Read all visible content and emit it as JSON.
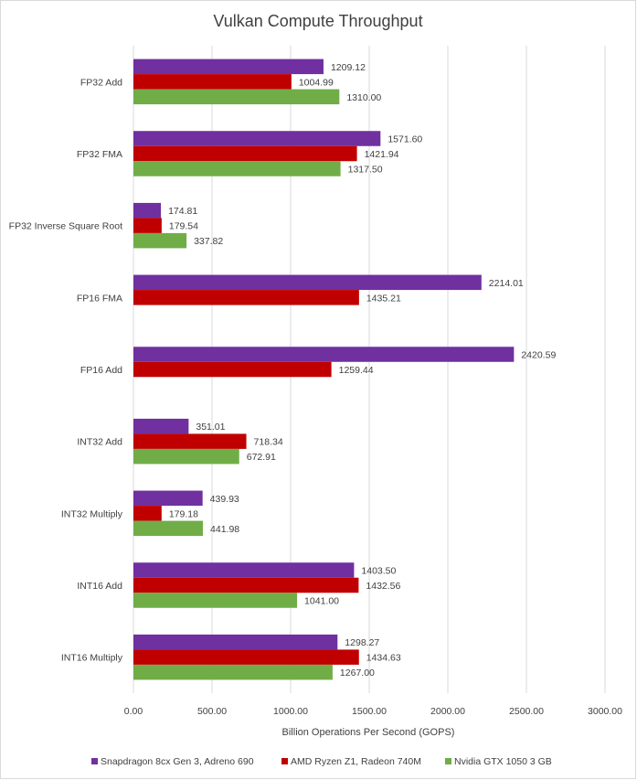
{
  "chart_data": {
    "type": "bar",
    "orientation": "horizontal",
    "title": "Vulkan Compute Throughput",
    "xlabel": "Billion Operations Per Second (GOPS)",
    "ylabel": "",
    "xlim": [
      0,
      3000
    ],
    "x_ticks": [
      "0.00",
      "500.00",
      "1000.00",
      "1500.00",
      "2000.00",
      "2500.00",
      "3000.00"
    ],
    "grid": true,
    "legend_position": "bottom",
    "categories": [
      "FP32 Add",
      "FP32 FMA",
      "FP32 Inverse Square Root",
      "FP16 FMA",
      "FP16 Add",
      "INT32 Add",
      "INT32 Multiply",
      "INT16 Add",
      "INT16 Multiply"
    ],
    "series": [
      {
        "name": "Snapdragon 8cx Gen 3, Adreno 690",
        "color": "#7030a0",
        "values": [
          1209.12,
          1571.6,
          174.81,
          2214.01,
          2420.59,
          351.01,
          439.93,
          1403.5,
          1298.27
        ],
        "labels": [
          "1209.12",
          "1571.60",
          "174.81",
          "2214.01",
          "2420.59",
          "351.01",
          "439.93",
          "1403.50",
          "1298.27"
        ]
      },
      {
        "name": "AMD Ryzen Z1, Radeon 740M",
        "color": "#c00000",
        "values": [
          1004.99,
          1421.94,
          179.54,
          1435.21,
          1259.44,
          718.34,
          179.18,
          1432.56,
          1434.63
        ],
        "labels": [
          "1004.99",
          "1421.94",
          "179.54",
          "1435.21",
          "1259.44",
          "718.34",
          "179.18",
          "1432.56",
          "1434.63"
        ]
      },
      {
        "name": "Nvidia GTX 1050 3 GB",
        "color": "#70ad47",
        "values": [
          1310.0,
          1317.5,
          337.82,
          null,
          null,
          672.91,
          441.98,
          1041.0,
          1267.0
        ],
        "labels": [
          "1310.00",
          "1317.50",
          "337.82",
          null,
          null,
          "672.91",
          "441.98",
          "1041.00",
          "1267.00"
        ]
      }
    ]
  }
}
